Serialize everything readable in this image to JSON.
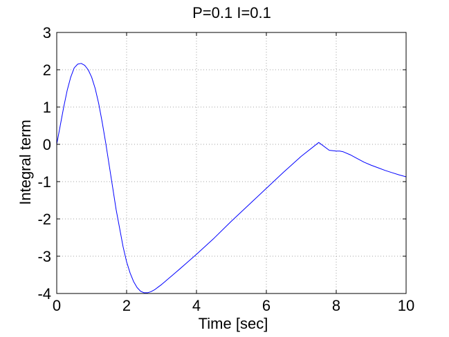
{
  "chart_data": {
    "type": "line",
    "title": "P=0.1 I=0.1",
    "xlabel": "Time [sec]",
    "ylabel": "Integral term",
    "xlim": [
      0,
      10
    ],
    "ylim": [
      -4,
      3
    ],
    "xticks": [
      0,
      2,
      4,
      6,
      8,
      10
    ],
    "yticks": [
      -4,
      -3,
      -2,
      -1,
      0,
      1,
      2,
      3
    ],
    "xtick_labels": [
      "0",
      "2",
      "4",
      "6",
      "8",
      "10"
    ],
    "ytick_labels": [
      "-4",
      "-3",
      "-2",
      "-1",
      "0",
      "1",
      "2",
      "3"
    ],
    "grid": true,
    "series": [
      {
        "color": "#0000ff",
        "x": [
          0,
          0.1,
          0.2,
          0.3,
          0.4,
          0.5,
          0.6,
          0.7,
          0.8,
          0.9,
          1.0,
          1.1,
          1.2,
          1.3,
          1.4,
          1.5,
          1.6,
          1.7,
          1.8,
          1.9,
          2.0,
          2.1,
          2.2,
          2.3,
          2.4,
          2.5,
          2.6,
          2.7,
          2.8,
          2.9,
          3.0,
          3.1,
          3.2,
          3.3,
          3.4,
          3.5,
          4.0,
          4.5,
          5.0,
          5.5,
          6.0,
          6.5,
          7.0,
          7.5,
          7.8,
          8.0,
          8.1,
          8.2,
          8.4,
          8.6,
          8.8,
          9.0,
          9.2,
          9.4,
          9.6,
          9.8,
          10.0
        ],
        "y": [
          0,
          0.5,
          1.0,
          1.45,
          1.8,
          2.05,
          2.15,
          2.17,
          2.12,
          2.0,
          1.8,
          1.5,
          1.1,
          0.6,
          0.05,
          -0.55,
          -1.15,
          -1.75,
          -2.25,
          -2.75,
          -3.15,
          -3.45,
          -3.68,
          -3.84,
          -3.94,
          -3.98,
          -3.98,
          -3.95,
          -3.9,
          -3.83,
          -3.76,
          -3.68,
          -3.6,
          -3.52,
          -3.44,
          -3.36,
          -2.95,
          -2.52,
          -2.06,
          -1.62,
          -1.18,
          -0.74,
          -0.32,
          0.05,
          -0.16,
          -0.18,
          -0.18,
          -0.2,
          -0.28,
          -0.38,
          -0.48,
          -0.56,
          -0.63,
          -0.7,
          -0.76,
          -0.82,
          -0.87
        ]
      }
    ]
  }
}
